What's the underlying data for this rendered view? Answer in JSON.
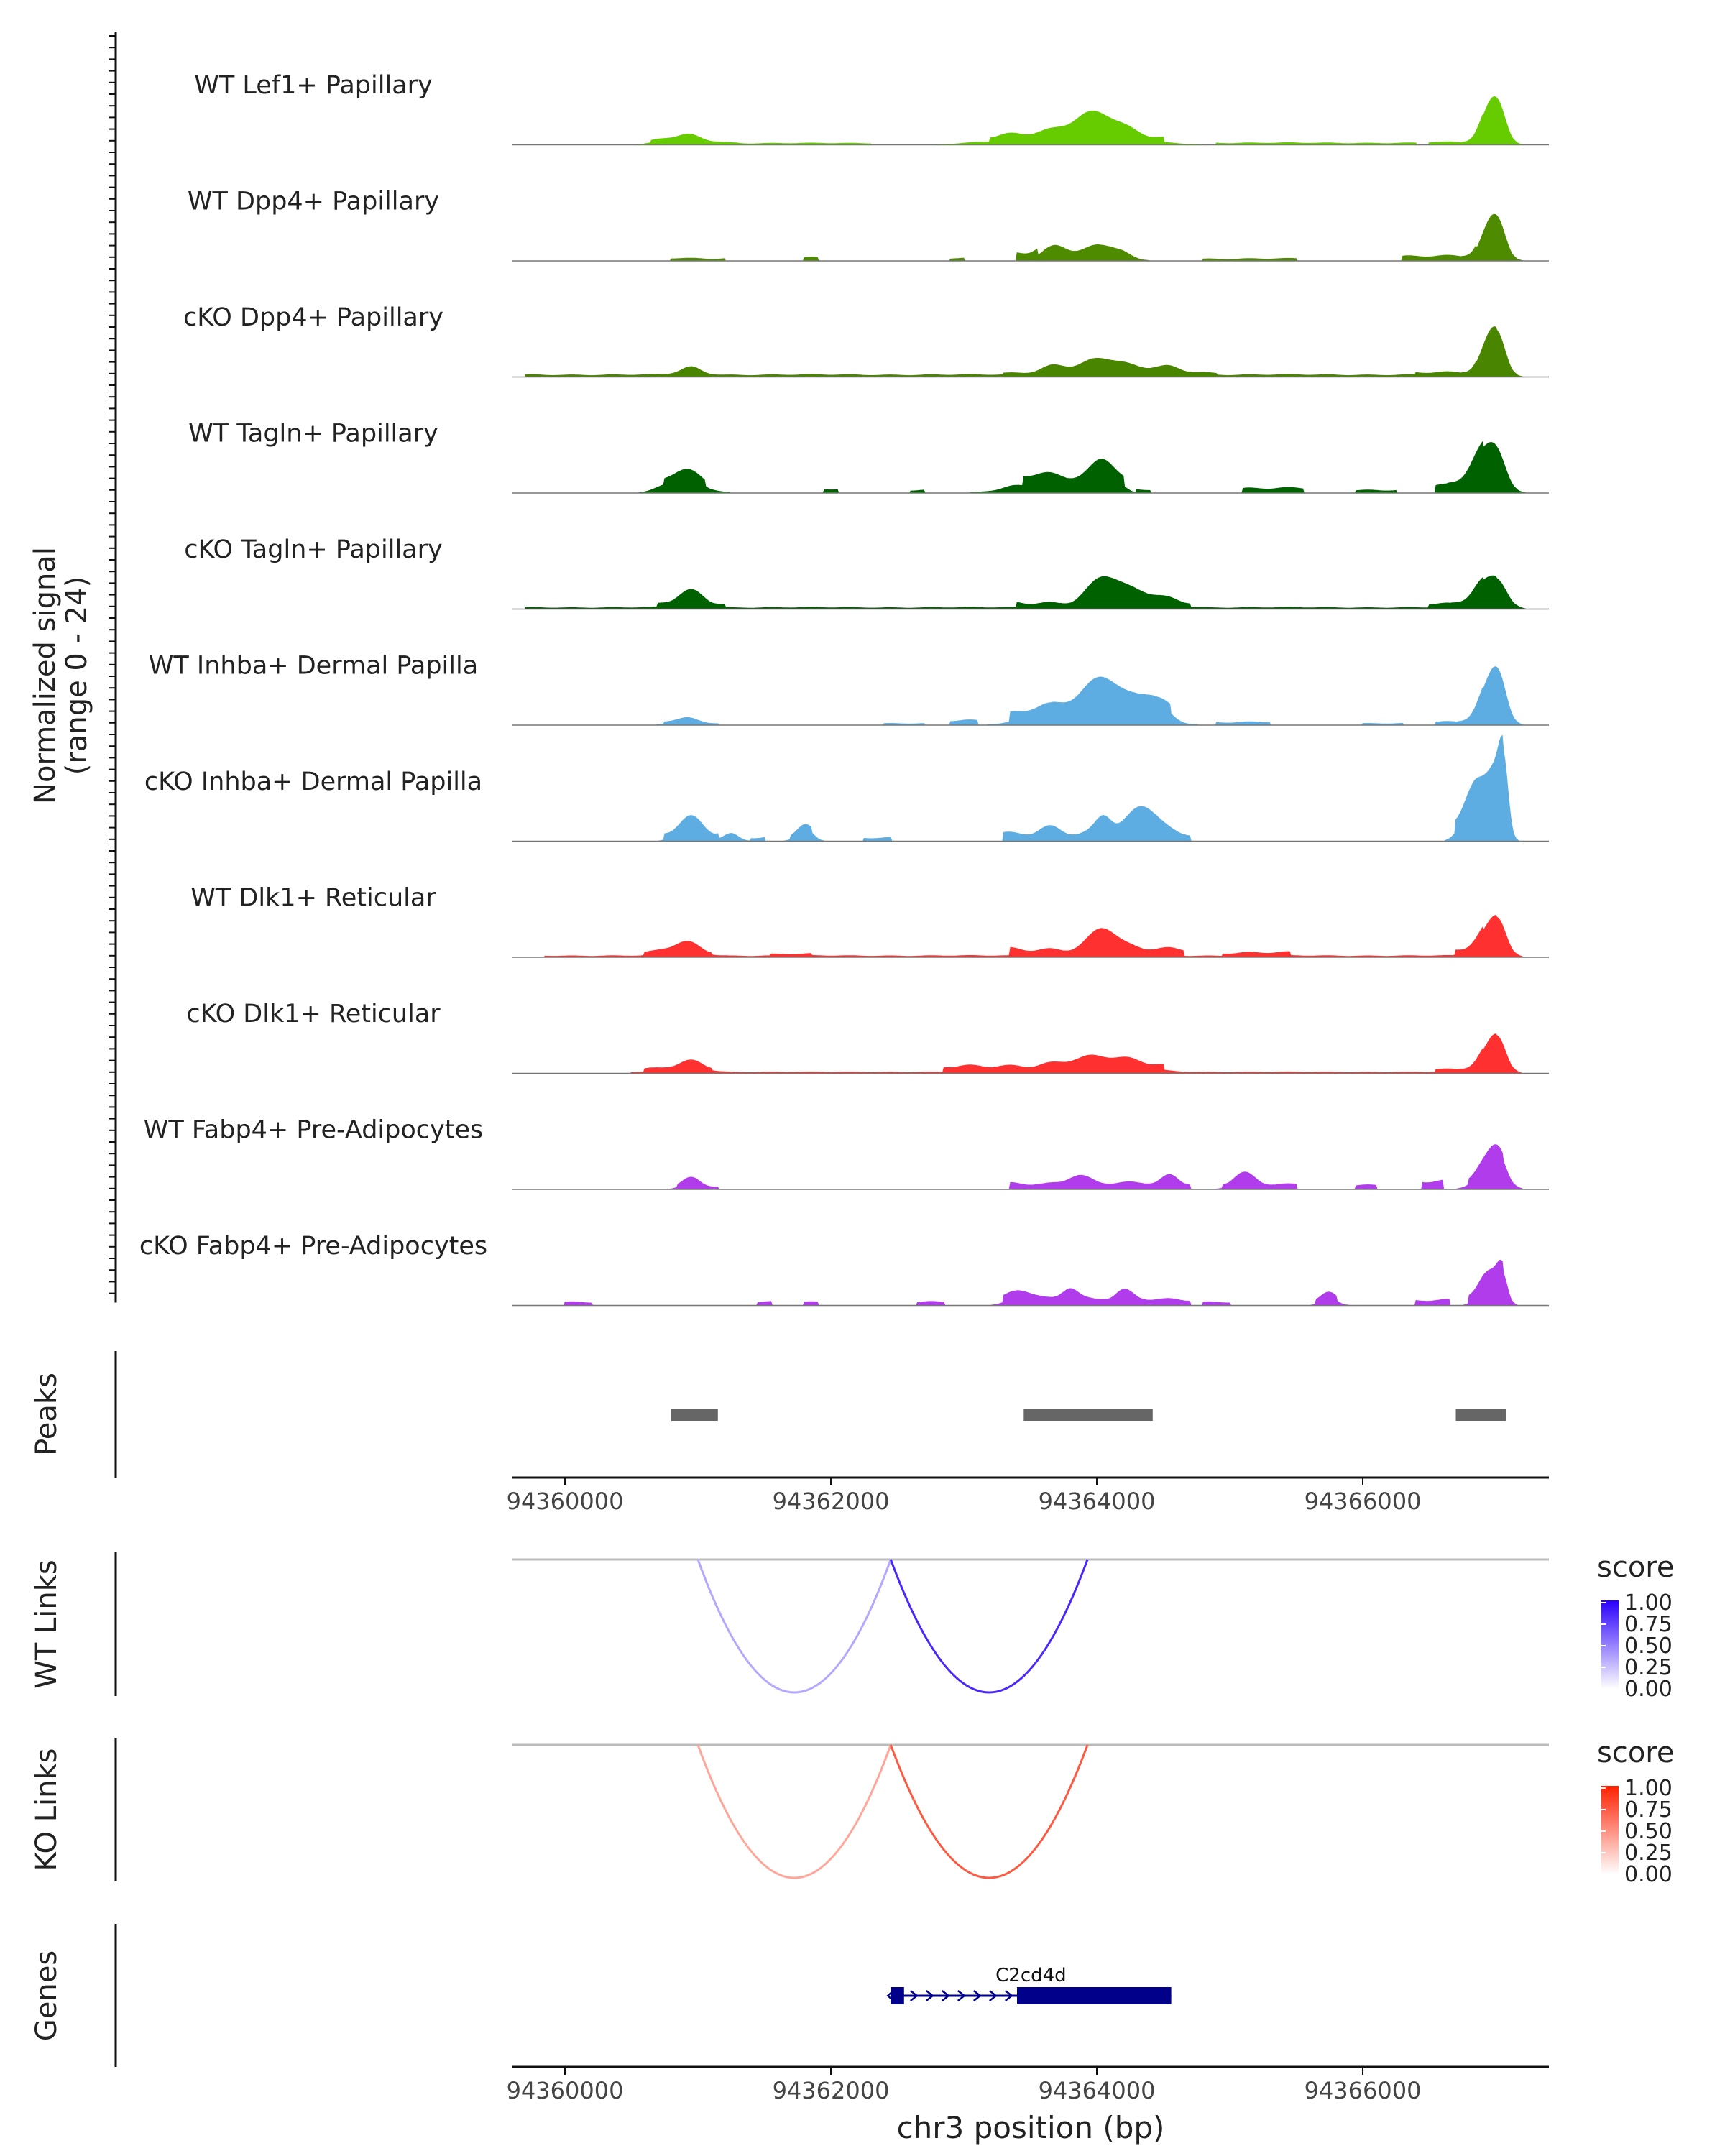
{
  "chart_data": {
    "type": "area",
    "title": "",
    "region": "chr3",
    "xlabel": "chr3 position (bp)",
    "xlim": [
      94359600,
      94367400
    ],
    "xticks": [
      "94360000",
      "94362000",
      "94364000",
      "94366000"
    ],
    "coverage_ylabel_line1": "Normalized signal",
    "coverage_ylabel_line2": "(range 0 - 24)",
    "ylim": [
      0,
      24
    ],
    "tracks": [
      {
        "name": "WT Lef1+ Papillary",
        "color": "#66CC00",
        "peaks": [
          [
            94360900,
            2.5,
            150
          ],
          [
            94363800,
            3.6,
            400
          ],
          [
            94364000,
            6.2,
            160
          ],
          [
            94366950,
            10.0,
            70
          ],
          [
            94367030,
            9.4,
            60
          ]
        ],
        "bg": [
          [
            94360650,
            94361300,
            0.6
          ],
          [
            94361300,
            94362300,
            0.5
          ],
          [
            94363200,
            94364500,
            1.5
          ],
          [
            94364900,
            94366400,
            0.6
          ],
          [
            94366500,
            94366900,
            0.8
          ]
        ]
      },
      {
        "name": "WT Dpp4+ Papillary",
        "color": "#4E8B00",
        "peaks": [
          [
            94363700,
            5.2,
            110
          ],
          [
            94364050,
            5.4,
            130
          ],
          [
            94366950,
            9.8,
            70
          ],
          [
            94367030,
            9.0,
            60
          ]
        ],
        "bg": [
          [
            94360800,
            94361200,
            0.8
          ],
          [
            94361800,
            94361900,
            1.0
          ],
          [
            94362900,
            94363000,
            0.8
          ],
          [
            94363400,
            94363550,
            2.5
          ],
          [
            94364800,
            94365500,
            0.7
          ],
          [
            94366300,
            94366850,
            1.5
          ]
        ]
      },
      {
        "name": "cKO Dpp4+ Papillary",
        "color": "#4A8500",
        "peaks": [
          [
            94360950,
            2.2,
            90
          ],
          [
            94363700,
            2.8,
            120
          ],
          [
            94364050,
            5.0,
            140
          ],
          [
            94364500,
            2.2,
            160
          ],
          [
            94366950,
            10.0,
            70
          ],
          [
            94367030,
            9.4,
            60
          ]
        ],
        "bg": [
          [
            94359700,
            94367000,
            0.7
          ],
          [
            94363300,
            94364900,
            1.2
          ],
          [
            94366400,
            94366850,
            1.4
          ]
        ]
      },
      {
        "name": "WT Tagln+ Papillary",
        "color": "#006100",
        "peaks": [
          [
            94360900,
            5.5,
            130
          ],
          [
            94363600,
            3.8,
            220
          ],
          [
            94364050,
            8.0,
            90
          ],
          [
            94366900,
            12.0,
            90
          ],
          [
            94367020,
            10.0,
            70
          ]
        ],
        "bg": [
          [
            94360750,
            94361050,
            2.0
          ],
          [
            94361950,
            94362050,
            1.2
          ],
          [
            94362600,
            94362700,
            1.0
          ],
          [
            94363450,
            94364200,
            3.0
          ],
          [
            94364300,
            94364400,
            1.0
          ],
          [
            94365100,
            94365550,
            1.5
          ],
          [
            94365950,
            94366250,
            1.0
          ],
          [
            94366550,
            94366900,
            2.4
          ]
        ]
      },
      {
        "name": "cKO Tagln+ Papillary",
        "color": "#006100",
        "peaks": [
          [
            94360950,
            4.5,
            100
          ],
          [
            94364050,
            7.5,
            110
          ],
          [
            94364300,
            3.5,
            180
          ],
          [
            94366900,
            7.0,
            80
          ],
          [
            94367030,
            8.0,
            70
          ]
        ],
        "bg": [
          [
            94359700,
            94367000,
            0.5
          ],
          [
            94360700,
            94361200,
            1.5
          ],
          [
            94363400,
            94364700,
            2.2
          ],
          [
            94366500,
            94366900,
            1.6
          ]
        ]
      },
      {
        "name": "WT Inhba+ Dermal Papilla",
        "color": "#5DADE2",
        "peaks": [
          [
            94360900,
            1.6,
            100
          ],
          [
            94363700,
            4.5,
            200
          ],
          [
            94364050,
            12.0,
            130
          ],
          [
            94364400,
            7.0,
            130
          ],
          [
            94366950,
            12.0,
            80
          ],
          [
            94367030,
            11.0,
            60
          ]
        ],
        "bg": [
          [
            94360750,
            94361150,
            0.6
          ],
          [
            94362400,
            94362700,
            0.6
          ],
          [
            94362900,
            94363100,
            1.4
          ],
          [
            94363350,
            94364550,
            3.0
          ],
          [
            94364900,
            94365300,
            1.0
          ],
          [
            94366000,
            94366300,
            0.6
          ],
          [
            94366550,
            94366900,
            1.0
          ]
        ]
      },
      {
        "name": "cKO Inhba+ Dermal Papilla",
        "color": "#5DADE2",
        "peaks": [
          [
            94360950,
            6.0,
            90
          ],
          [
            94361250,
            2.5,
            60
          ],
          [
            94361800,
            3.5,
            60
          ],
          [
            94363650,
            2.5,
            80
          ],
          [
            94364050,
            6.0,
            60
          ],
          [
            94364350,
            9.0,
            110
          ],
          [
            94366850,
            16.0,
            80
          ],
          [
            94367000,
            17.0,
            60
          ],
          [
            94367060,
            20.0,
            35
          ]
        ],
        "bg": [
          [
            94360750,
            94361150,
            2.0
          ],
          [
            94361400,
            94361500,
            1.2
          ],
          [
            94361700,
            94361850,
            1.5
          ],
          [
            94362250,
            94362450,
            1.2
          ],
          [
            94363300,
            94364700,
            2.6
          ],
          [
            94366700,
            94367050,
            4.0
          ]
        ]
      },
      {
        "name": "WT Dlk1+ Reticular",
        "color": "#FF3030",
        "peaks": [
          [
            94360900,
            3.5,
            110
          ],
          [
            94364050,
            7.0,
            100
          ],
          [
            94366950,
            8.0,
            90
          ],
          [
            94367030,
            7.6,
            60
          ]
        ],
        "bg": [
          [
            94359850,
            94367000,
            0.5
          ],
          [
            94360600,
            94361100,
            1.4
          ],
          [
            94361550,
            94361850,
            1.0
          ],
          [
            94363350,
            94364650,
            2.8
          ],
          [
            94364950,
            94365450,
            1.5
          ],
          [
            94366700,
            94366900,
            2.0
          ]
        ]
      },
      {
        "name": "cKO Dlk1+ Reticular",
        "color": "#FF3030",
        "peaks": [
          [
            94360950,
            2.5,
            110
          ],
          [
            94364000,
            3.5,
            260
          ],
          [
            94366950,
            7.0,
            80
          ],
          [
            94367030,
            8.0,
            60
          ]
        ],
        "bg": [
          [
            94360500,
            94367000,
            0.4
          ],
          [
            94360600,
            94361100,
            1.4
          ],
          [
            94362850,
            94364500,
            2.2
          ],
          [
            94366550,
            94366900,
            1.2
          ]
        ]
      },
      {
        "name": "WT Fabp4+ Pre-Adipocytes",
        "color": "#B03CEC",
        "peaks": [
          [
            94360950,
            2.5,
            70
          ],
          [
            94363850,
            3.0,
            80
          ],
          [
            94364550,
            2.5,
            60
          ],
          [
            94365100,
            4.0,
            80
          ],
          [
            94366950,
            8.0,
            90
          ],
          [
            94367030,
            7.0,
            60
          ]
        ],
        "bg": [
          [
            94360850,
            94361150,
            1.0
          ],
          [
            94363350,
            94364700,
            2.0
          ],
          [
            94364950,
            94365500,
            1.5
          ],
          [
            94365950,
            94366100,
            1.5
          ],
          [
            94366450,
            94366600,
            2.5
          ],
          [
            94366800,
            94367050,
            2.0
          ]
        ]
      },
      {
        "name": "cKO Fabp4+ Pre-Adipocytes",
        "color": "#B03CEC",
        "peaks": [
          [
            94363450,
            3.2,
            100
          ],
          [
            94363800,
            4.5,
            60
          ],
          [
            94364200,
            2.8,
            60
          ],
          [
            94365750,
            2.5,
            60
          ],
          [
            94366950,
            8.0,
            70
          ],
          [
            94367050,
            9.5,
            40
          ]
        ],
        "bg": [
          [
            94360000,
            94360200,
            1.2
          ],
          [
            94361450,
            94361550,
            1.2
          ],
          [
            94361800,
            94361900,
            1.0
          ],
          [
            94362650,
            94362850,
            1.2
          ],
          [
            94363300,
            94364700,
            2.0
          ],
          [
            94364800,
            94365000,
            1.2
          ],
          [
            94365650,
            94365800,
            1.5
          ],
          [
            94366400,
            94366650,
            1.6
          ],
          [
            94366800,
            94367050,
            3.0
          ]
        ]
      }
    ],
    "peaks_track": {
      "label": "Peaks",
      "color": "#666666",
      "regions": [
        [
          94360800,
          94361150
        ],
        [
          94363450,
          94364420
        ],
        [
          94366700,
          94367080
        ]
      ]
    },
    "links": [
      {
        "label": "WT Links",
        "legend_title": "score",
        "legend_ticks": [
          "1.00",
          "0.75",
          "0.50",
          "0.25",
          "0.00"
        ],
        "low_color": "#FFFFFF",
        "high_color": "#2B00FF",
        "arcs": [
          {
            "start": 94361000,
            "end": 94362450,
            "score": 0.35
          },
          {
            "start": 94362450,
            "end": 94363930,
            "score": 0.85
          }
        ]
      },
      {
        "label": "KO Links",
        "legend_title": "score",
        "legend_ticks": [
          "1.00",
          "0.75",
          "0.50",
          "0.25",
          "0.00"
        ],
        "low_color": "#FFFFFF",
        "high_color": "#FF2000",
        "arcs": [
          {
            "start": 94361000,
            "end": 94362450,
            "score": 0.4
          },
          {
            "start": 94362450,
            "end": 94363930,
            "score": 0.75
          }
        ]
      }
    ],
    "genes": {
      "label": "Genes",
      "color": "#00008B",
      "items": [
        {
          "name": "C2cd4d",
          "start": 94362450,
          "end": 94364560,
          "exons": [
            [
              94362450,
              94362550
            ],
            [
              94363400,
              94364560
            ]
          ],
          "strand": "+"
        }
      ]
    }
  }
}
